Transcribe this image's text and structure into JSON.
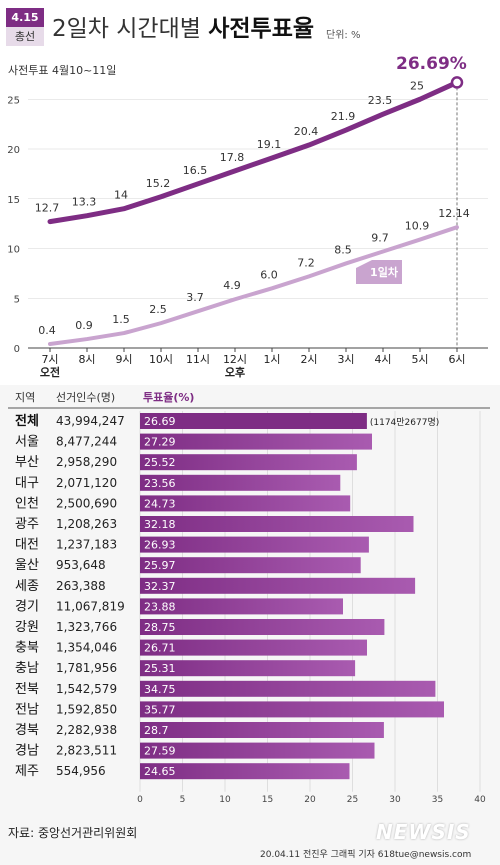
{
  "badge": {
    "top": "4.15",
    "bottom": "총선"
  },
  "title": {
    "plain": "2일차 시간대별 ",
    "bold": "사전투표율"
  },
  "unit": "단위: %",
  "subtitle": "사전투표 4월10~11일",
  "peak_label": "26.69%",
  "day1_label": "1일차",
  "period_am": "오전",
  "period_pm": "오후",
  "colors": {
    "day2": "#7e2d84",
    "day1": "#c9a4cf",
    "bar": "#7e2d84",
    "bar_light": "#a95bb0",
    "grid": "#d6d6d6"
  },
  "table": {
    "col_region": "지역",
    "col_voters": "선거인수(명)",
    "col_rate": "투표율(%)",
    "total_note": "(1174만2677명)"
  },
  "source": "자료: 중앙선거관리위원회",
  "credit": "20.04.11 전진우 그래픽 기자 618tue@newsis.com",
  "watermark": "NEWSIS",
  "chart_data": [
    {
      "type": "line",
      "x": [
        "7시",
        "8시",
        "9시",
        "10시",
        "11시",
        "12시",
        "1시",
        "2시",
        "3시",
        "4시",
        "5시",
        "6시"
      ],
      "ylim": [
        0,
        26
      ],
      "yticks": [
        0,
        5,
        10,
        15,
        20,
        25
      ],
      "series": [
        {
          "name": "",
          "values": [
            12.7,
            13.3,
            14,
            15.2,
            16.5,
            17.8,
            19.1,
            20.4,
            21.9,
            23.5,
            25,
            26.69
          ],
          "labels": [
            "12.7",
            "13.3",
            "14",
            "15.2",
            "16.5",
            "17.8",
            "19.1",
            "20.4",
            "21.9",
            "23.5",
            "25",
            ""
          ]
        },
        {
          "name": "1일차",
          "values": [
            0.4,
            0.9,
            1.5,
            2.5,
            3.7,
            4.9,
            6.0,
            7.2,
            8.5,
            9.7,
            10.9,
            12.14
          ],
          "labels": [
            "0.4",
            "0.9",
            "1.5",
            "2.5",
            "3.7",
            "4.9",
            "6.0",
            "7.2",
            "8.5",
            "9.7",
            "10.9",
            "12.14"
          ]
        }
      ]
    },
    {
      "type": "bar",
      "orientation": "horizontal",
      "xlim": [
        0,
        40
      ],
      "xticks": [
        0,
        5,
        10,
        15,
        20,
        25,
        30,
        35,
        40
      ],
      "categories": [
        "전체",
        "서울",
        "부산",
        "대구",
        "인천",
        "광주",
        "대전",
        "울산",
        "세종",
        "경기",
        "강원",
        "충북",
        "충남",
        "전북",
        "전남",
        "경북",
        "경남",
        "제주"
      ],
      "voters": [
        "43,994,247",
        "8,477,244",
        "2,958,290",
        "2,071,120",
        "2,500,690",
        "1,208,263",
        "1,237,183",
        "953,648",
        "263,388",
        "11,067,819",
        "1,323,766",
        "1,354,046",
        "1,781,956",
        "1,542,579",
        "1,592,850",
        "2,282,938",
        "2,823,511",
        "554,956"
      ],
      "value_labels": [
        "26.69",
        "27.29",
        "25.52",
        "23.56",
        "24.73",
        "32.18",
        "26.93",
        "25.97",
        "32.37",
        "23.88",
        "28.75",
        "26.71",
        "25.31",
        "34.75",
        "35.77",
        "28.7",
        "27.59",
        "24.65"
      ],
      "values": [
        26.69,
        27.29,
        25.52,
        23.56,
        24.73,
        32.18,
        26.93,
        25.97,
        32.37,
        23.88,
        28.75,
        26.71,
        25.31,
        34.75,
        35.77,
        28.7,
        27.59,
        24.65
      ]
    }
  ]
}
